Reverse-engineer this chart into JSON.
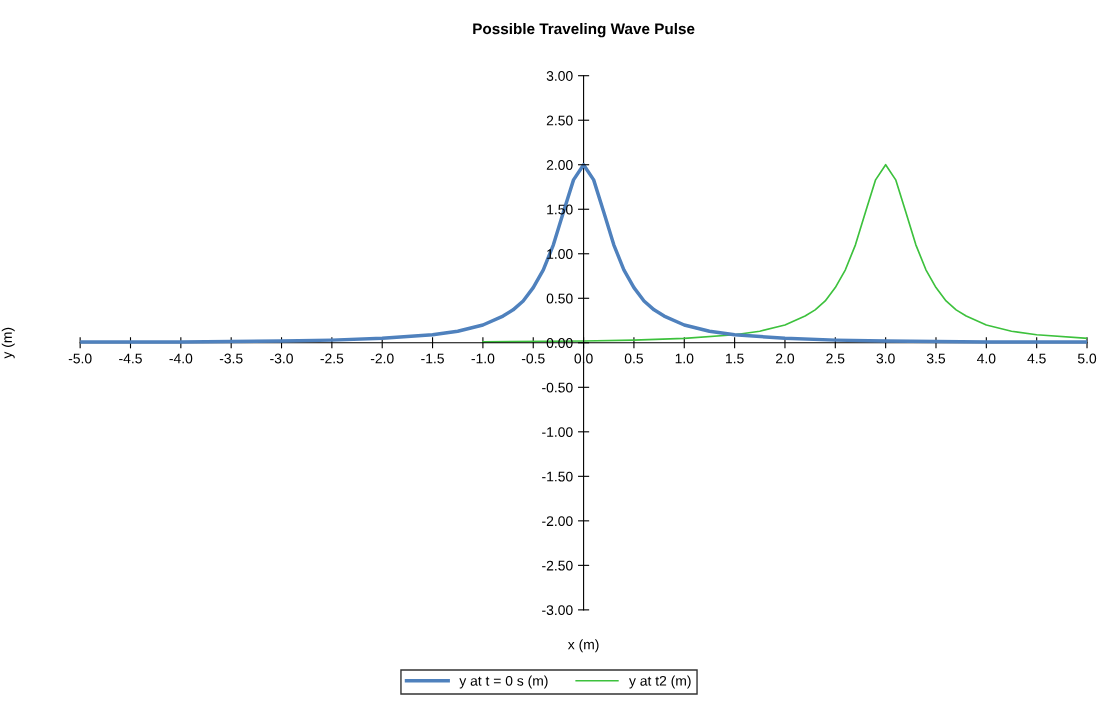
{
  "chart_data": {
    "type": "line",
    "title": "Possible Traveling Wave Pulse",
    "xlabel": "x (m)",
    "ylabel": "y (m)",
    "xlim": [
      -5,
      5
    ],
    "ylim": [
      -3,
      3
    ],
    "xticks": [
      {
        "value": -5,
        "label": "-5.0"
      },
      {
        "value": -4.5,
        "label": "-4.5"
      },
      {
        "value": -4,
        "label": "-4.0"
      },
      {
        "value": -3.5,
        "label": "-3.5"
      },
      {
        "value": -3,
        "label": "-3.0"
      },
      {
        "value": -2.5,
        "label": "-2.5"
      },
      {
        "value": -2,
        "label": "-2.0"
      },
      {
        "value": -1.5,
        "label": "-1.5"
      },
      {
        "value": -1,
        "label": "-1.0"
      },
      {
        "value": -0.5,
        "label": "-0.5"
      },
      {
        "value": 0,
        "label": "0.0"
      },
      {
        "value": 0.5,
        "label": "0.5"
      },
      {
        "value": 1,
        "label": "1.0"
      },
      {
        "value": 1.5,
        "label": "1.5"
      },
      {
        "value": 2,
        "label": "2.0"
      },
      {
        "value": 2.5,
        "label": "2.5"
      },
      {
        "value": 3,
        "label": "3.0"
      },
      {
        "value": 3.5,
        "label": "3.5"
      },
      {
        "value": 4,
        "label": "4.0"
      },
      {
        "value": 4.5,
        "label": "4.5"
      },
      {
        "value": 5,
        "label": "5.0"
      }
    ],
    "yticks": [
      {
        "value": -3,
        "label": "-3.00"
      },
      {
        "value": -2.5,
        "label": "-2.50"
      },
      {
        "value": -2,
        "label": "-2.00"
      },
      {
        "value": -1.5,
        "label": "-1.50"
      },
      {
        "value": -1,
        "label": "-1.00"
      },
      {
        "value": -0.5,
        "label": "-0.50"
      },
      {
        "value": 0,
        "label": "0.00"
      },
      {
        "value": 0.5,
        "label": "0.50"
      },
      {
        "value": 1,
        "label": "1.00"
      },
      {
        "value": 1.5,
        "label": "1.50"
      },
      {
        "value": 2,
        "label": "2.00"
      },
      {
        "value": 2.5,
        "label": "2.50"
      },
      {
        "value": 3,
        "label": "3.00"
      }
    ],
    "grid": false,
    "legend": "bottom",
    "marker": "none",
    "line_style": "solid",
    "series": [
      {
        "name": "y at t = 0 s (m)",
        "color": "#4f81bd",
        "x": [
          -5,
          -4,
          -3,
          -2.5,
          -2,
          -1.5,
          -1.25,
          -1,
          -0.8,
          -0.7,
          -0.6,
          -0.5,
          -0.4,
          -0.3,
          -0.2,
          -0.1,
          0,
          0.1,
          0.2,
          0.3,
          0.4,
          0.5,
          0.6,
          0.7,
          0.8,
          1,
          1.25,
          1.5,
          2,
          2.5,
          3,
          4,
          5
        ],
        "values": [
          0.01,
          0.01,
          0.02,
          0.03,
          0.05,
          0.09,
          0.13,
          0.2,
          0.3,
          0.37,
          0.47,
          0.62,
          0.82,
          1.1,
          1.47,
          1.83,
          2,
          1.83,
          1.47,
          1.1,
          0.82,
          0.62,
          0.47,
          0.37,
          0.3,
          0.2,
          0.13,
          0.09,
          0.05,
          0.03,
          0.02,
          0.01,
          0.01
        ]
      },
      {
        "name": "y at t2 (m)",
        "color": "#3dc13d",
        "x": [
          -1,
          0,
          0.5,
          1,
          1.5,
          1.75,
          2,
          2.2,
          2.3,
          2.4,
          2.5,
          2.6,
          2.7,
          2.8,
          2.9,
          3,
          3.1,
          3.2,
          3.3,
          3.4,
          3.5,
          3.6,
          3.7,
          3.8,
          4,
          4.25,
          4.5,
          5
        ],
        "values": [
          0.01,
          0.02,
          0.03,
          0.05,
          0.09,
          0.13,
          0.2,
          0.3,
          0.37,
          0.47,
          0.62,
          0.82,
          1.1,
          1.47,
          1.83,
          2,
          1.83,
          1.47,
          1.1,
          0.82,
          0.62,
          0.47,
          0.37,
          0.3,
          0.2,
          0.13,
          0.09,
          0.05
        ]
      }
    ]
  }
}
